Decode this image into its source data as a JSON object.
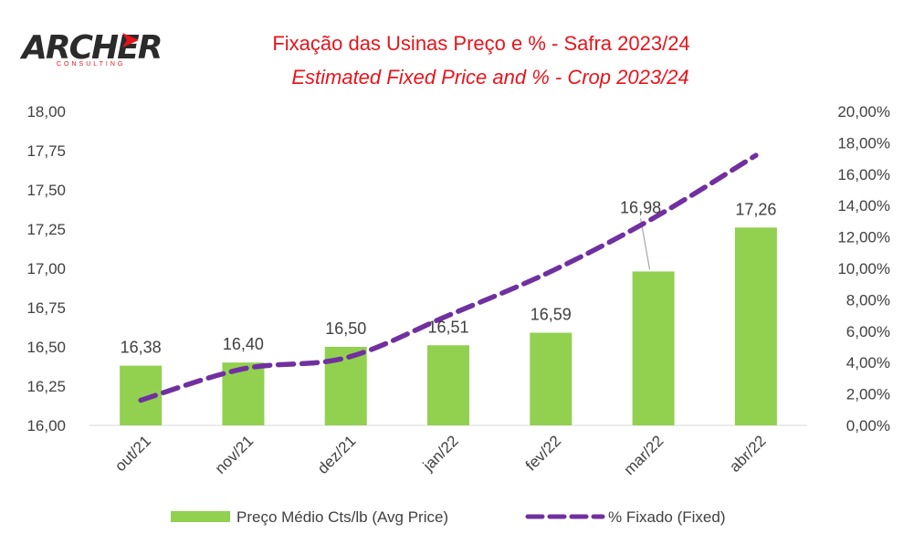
{
  "logo": {
    "name": "ARCHER",
    "sub": "CONSULTING",
    "color": "#2b2b2b",
    "accent": "#e8141b"
  },
  "chart_data": {
    "type": "bar",
    "title": "Fixação das Usinas Preço e %  - Safra 2023/24",
    "subtitle": "Estimated Fixed Price and % - Crop 2023/24",
    "categories": [
      "out/21",
      "nov/21",
      "dez/21",
      "jan/22",
      "fev/22",
      "mar/22",
      "abr/22"
    ],
    "y_left": {
      "range": [
        16.0,
        18.0
      ],
      "ticks": [
        "16,00",
        "16,25",
        "16,50",
        "16,75",
        "17,00",
        "17,25",
        "17,50",
        "17,75",
        "18,00"
      ]
    },
    "y_right": {
      "range": [
        0,
        20
      ],
      "ticks": [
        "0,00%",
        "2,00%",
        "4,00%",
        "6,00%",
        "8,00%",
        "10,00%",
        "12,00%",
        "14,00%",
        "16,00%",
        "18,00%",
        "20,00%"
      ]
    },
    "series": [
      {
        "name": "Preço Médio Cts/lb (Avg Price)",
        "kind": "bar",
        "axis": "left",
        "color": "#92d050",
        "values": [
          16.38,
          16.4,
          16.5,
          16.51,
          16.59,
          16.98,
          17.26
        ],
        "labels": [
          "16,38",
          "16,40",
          "16,50",
          "16,51",
          "16,59",
          "16,98",
          "17,26"
        ]
      },
      {
        "name": "% Fixado (Fixed)",
        "kind": "line",
        "style": "dashed",
        "axis": "right",
        "color": "#7030a0",
        "values": [
          1.6,
          3.6,
          4.3,
          7.0,
          9.8,
          13.2,
          17.2
        ]
      }
    ],
    "grid": false,
    "legend": "bottom"
  }
}
